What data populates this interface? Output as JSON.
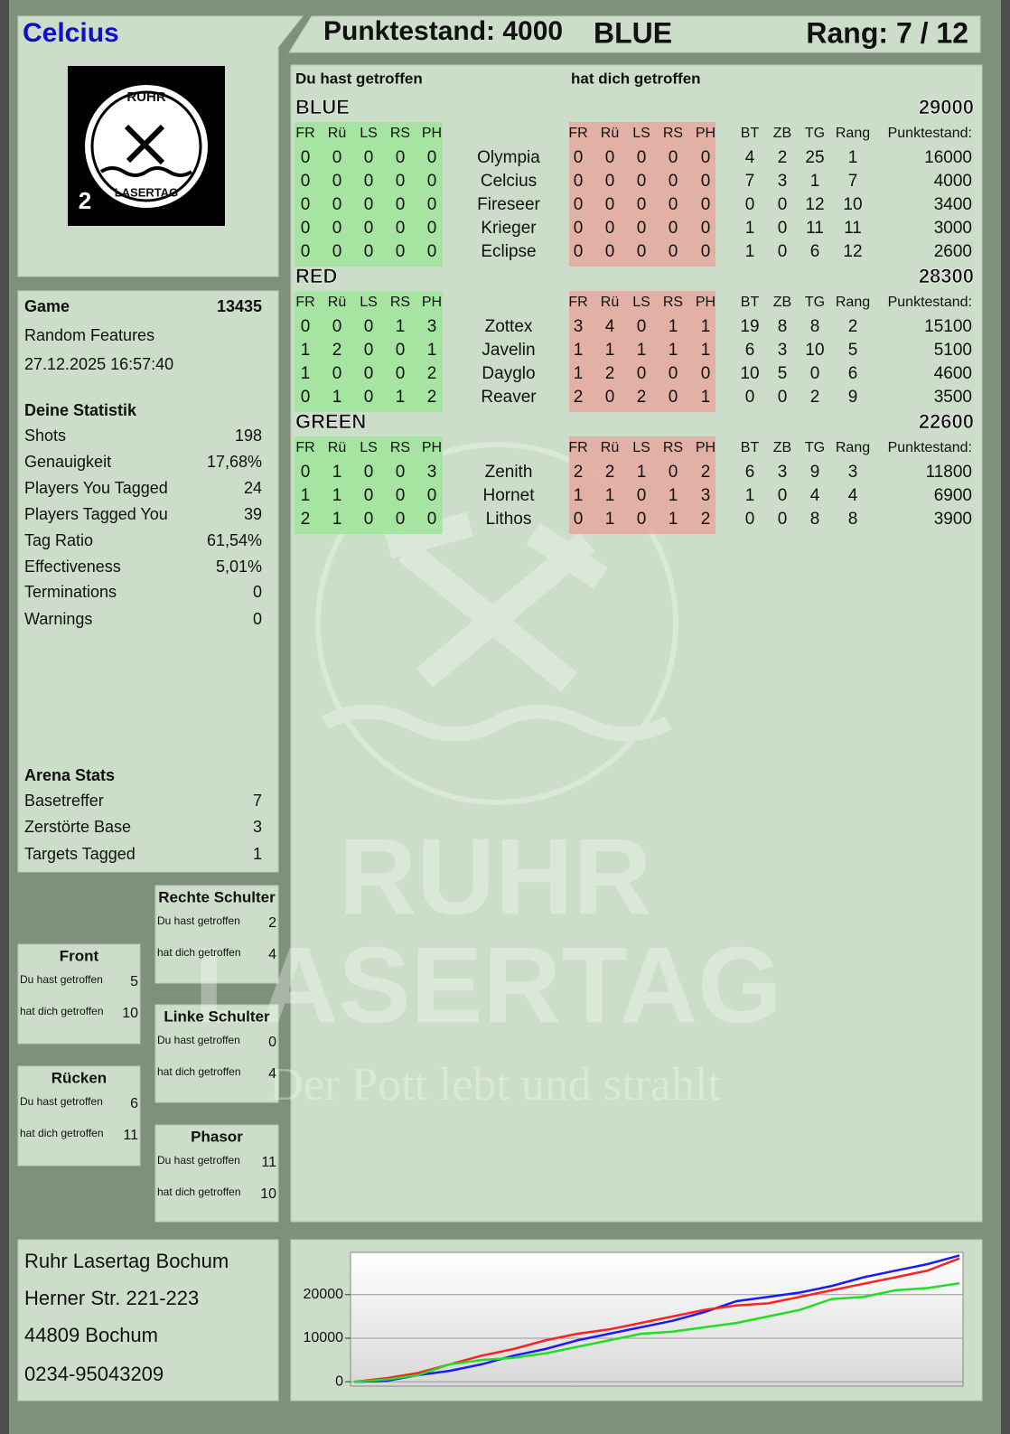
{
  "header": {
    "player": "Celcius",
    "score": "Punktestand: 4000",
    "team": "BLUE",
    "rank": "Rang: 7 / 12"
  },
  "logo": {
    "top": "RUHR",
    "bottom": "LASERTAG",
    "number": "2"
  },
  "watermark": {
    "line1": "RUHR",
    "line2": "LASERTAG",
    "slogan": "Der Pott lebt und strahlt"
  },
  "game": {
    "label": "Game",
    "id": "13435",
    "mode": "Random Features",
    "datetime": "27.12.2025 16:57:40"
  },
  "stats": {
    "title": "Deine Statistik",
    "rows": [
      [
        "Shots",
        "198"
      ],
      [
        "Genauigkeit",
        "17,68%"
      ],
      [
        "Players You Tagged",
        "24"
      ],
      [
        "Players Tagged You",
        "39"
      ],
      [
        "Tag Ratio",
        "61,54%"
      ],
      [
        "Effectiveness",
        "5,01%"
      ],
      [
        "Terminations",
        "0"
      ],
      [
        "Warnings",
        "0"
      ]
    ]
  },
  "arena": {
    "title": "Arena Stats",
    "rows": [
      [
        "Basetreffer",
        "7"
      ],
      [
        "Zerstörte Base",
        "3"
      ],
      [
        "Targets Tagged",
        "1"
      ]
    ]
  },
  "zones": [
    {
      "title": "Rechte Schulter",
      "rows": [
        [
          "Du hast getroffen",
          "2"
        ],
        [
          "hat dich getroffen",
          "4"
        ]
      ]
    },
    {
      "title": "Front",
      "rows": [
        [
          "Du hast getroffen",
          "5"
        ],
        [
          "hat dich getroffen",
          "10"
        ]
      ]
    },
    {
      "title": "Linke Schulter",
      "rows": [
        [
          "Du hast getroffen",
          "0"
        ],
        [
          "hat dich getroffen",
          "4"
        ]
      ]
    },
    {
      "title": "Rücken",
      "rows": [
        [
          "Du hast getroffen",
          "6"
        ],
        [
          "hat dich getroffen",
          "11"
        ]
      ]
    },
    {
      "title": "Phasor",
      "rows": [
        [
          "Du hast getroffen",
          "11"
        ],
        [
          "hat dich getroffen",
          "10"
        ]
      ]
    }
  ],
  "address": [
    "Ruhr Lasertag Bochum",
    "Herner Str. 221-223",
    "44809 Bochum",
    "0234-95043209"
  ],
  "scoreboard": {
    "you_hit": "Du hast getroffen",
    "hit_you": "hat dich getroffen",
    "hit_columns": [
      "FR",
      "Rü",
      "LS",
      "RS",
      "PH"
    ],
    "stat_columns": [
      "BT",
      "ZB",
      "TG",
      "Rang",
      "Punktestand:"
    ],
    "teams": [
      {
        "name": "BLUE",
        "color": "#1010d0",
        "total": "29000",
        "players": [
          {
            "name": "Olympia",
            "hit": [
              0,
              0,
              0,
              0,
              0
            ],
            "hit_by": [
              0,
              0,
              0,
              0,
              0
            ],
            "stats": [
              4,
              2,
              25,
              1,
              16000
            ]
          },
          {
            "name": "Celcius",
            "hit": [
              0,
              0,
              0,
              0,
              0
            ],
            "hit_by": [
              0,
              0,
              0,
              0,
              0
            ],
            "stats": [
              7,
              3,
              1,
              7,
              4000
            ]
          },
          {
            "name": "Fireseer",
            "hit": [
              0,
              0,
              0,
              0,
              0
            ],
            "hit_by": [
              0,
              0,
              0,
              0,
              0
            ],
            "stats": [
              0,
              0,
              12,
              10,
              3400
            ]
          },
          {
            "name": "Krieger",
            "hit": [
              0,
              0,
              0,
              0,
              0
            ],
            "hit_by": [
              0,
              0,
              0,
              0,
              0
            ],
            "stats": [
              1,
              0,
              11,
              11,
              3000
            ]
          },
          {
            "name": "Eclipse",
            "hit": [
              0,
              0,
              0,
              0,
              0
            ],
            "hit_by": [
              0,
              0,
              0,
              0,
              0
            ],
            "stats": [
              1,
              0,
              6,
              12,
              2600
            ]
          }
        ]
      },
      {
        "name": "RED",
        "color": "#e01010",
        "total": "28300",
        "players": [
          {
            "name": "Zottex",
            "hit": [
              0,
              0,
              0,
              1,
              3
            ],
            "hit_by": [
              3,
              4,
              0,
              1,
              1
            ],
            "stats": [
              19,
              8,
              8,
              2,
              15100
            ]
          },
          {
            "name": "Javelin",
            "hit": [
              1,
              2,
              0,
              0,
              1
            ],
            "hit_by": [
              1,
              1,
              1,
              1,
              1
            ],
            "stats": [
              6,
              3,
              10,
              5,
              5100
            ]
          },
          {
            "name": "Dayglo",
            "hit": [
              1,
              0,
              0,
              0,
              2
            ],
            "hit_by": [
              1,
              2,
              0,
              0,
              0
            ],
            "stats": [
              10,
              5,
              0,
              6,
              4600
            ]
          },
          {
            "name": "Reaver",
            "hit": [
              0,
              1,
              0,
              1,
              2
            ],
            "hit_by": [
              2,
              0,
              2,
              0,
              1
            ],
            "stats": [
              0,
              0,
              2,
              9,
              3500
            ]
          }
        ]
      },
      {
        "name": "GREEN",
        "color": "#18d018",
        "total": "22600",
        "players": [
          {
            "name": "Zenith",
            "hit": [
              0,
              1,
              0,
              0,
              3
            ],
            "hit_by": [
              2,
              2,
              1,
              0,
              2
            ],
            "stats": [
              6,
              3,
              9,
              3,
              11800
            ]
          },
          {
            "name": "Hornet",
            "hit": [
              1,
              1,
              0,
              0,
              0
            ],
            "hit_by": [
              1,
              1,
              0,
              1,
              3
            ],
            "stats": [
              1,
              0,
              4,
              4,
              6900
            ]
          },
          {
            "name": "Lithos",
            "hit": [
              2,
              1,
              0,
              0,
              0
            ],
            "hit_by": [
              0,
              1,
              0,
              1,
              2
            ],
            "stats": [
              0,
              0,
              8,
              8,
              3900
            ]
          }
        ]
      }
    ]
  },
  "chart_data": {
    "type": "line",
    "ylim": [
      -1000,
      29700
    ],
    "yticks": [
      0,
      10000,
      20000
    ],
    "grid": true,
    "series": [
      {
        "name": "BLUE",
        "color": "#1a1aff",
        "values": [
          0,
          200,
          1500,
          2500,
          4000,
          6000,
          7500,
          9500,
          11000,
          12500,
          14000,
          16000,
          18500,
          19500,
          20500,
          22000,
          24000,
          25500,
          27000,
          29000
        ]
      },
      {
        "name": "RED",
        "color": "#ff2020",
        "values": [
          0,
          800,
          2000,
          4000,
          6000,
          7500,
          9500,
          11000,
          12000,
          13500,
          15000,
          16500,
          17500,
          18000,
          19500,
          21000,
          22500,
          24000,
          25500,
          28300
        ]
      },
      {
        "name": "GREEN",
        "color": "#22dd22",
        "values": [
          0,
          500,
          1500,
          4000,
          5000,
          5500,
          6500,
          8000,
          9500,
          11000,
          11500,
          12500,
          13500,
          15000,
          16500,
          19000,
          19500,
          21000,
          21500,
          22600
        ]
      }
    ]
  }
}
